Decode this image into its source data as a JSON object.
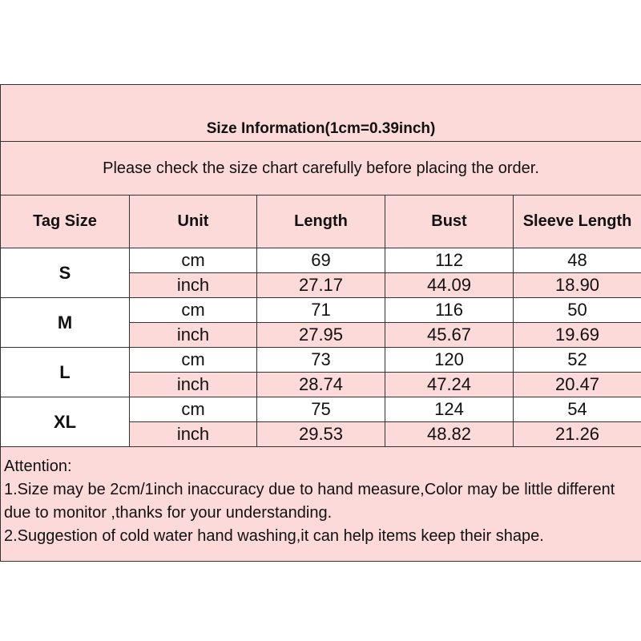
{
  "title": "Size Information(1cm=0.39inch)",
  "subtitle": "Please check the size chart carefully before placing the order.",
  "headers": [
    "Tag Size",
    "Unit",
    "Length",
    "Bust",
    "Sleeve Length"
  ],
  "rows": [
    {
      "size": "S",
      "cm": {
        "unit": "cm",
        "length": "69",
        "bust": "112",
        "sleeve": "48"
      },
      "inch": {
        "unit": "inch",
        "length": "27.17",
        "bust": "44.09",
        "sleeve": "18.90"
      }
    },
    {
      "size": "M",
      "cm": {
        "unit": "cm",
        "length": "71",
        "bust": "116",
        "sleeve": "50"
      },
      "inch": {
        "unit": "inch",
        "length": "27.95",
        "bust": "45.67",
        "sleeve": "19.69"
      }
    },
    {
      "size": "L",
      "cm": {
        "unit": "cm",
        "length": "73",
        "bust": "120",
        "sleeve": "52"
      },
      "inch": {
        "unit": "inch",
        "length": "28.74",
        "bust": "47.24",
        "sleeve": "20.47"
      }
    },
    {
      "size": "XL",
      "cm": {
        "unit": "cm",
        "length": "75",
        "bust": "124",
        "sleeve": "54"
      },
      "inch": {
        "unit": "inch",
        "length": "29.53",
        "bust": "48.82",
        "sleeve": "21.26"
      }
    }
  ],
  "attention": {
    "heading": "Attention:",
    "line1": "1.Size may be 2cm/1inch inaccuracy due to hand measure,Color may be little different due to monitor ,thanks for your understanding.",
    "line2": "2.Suggestion of cold water hand washing,it can help items keep their shape."
  },
  "colors": {
    "pink": "#fcdada",
    "border": "#333333"
  }
}
